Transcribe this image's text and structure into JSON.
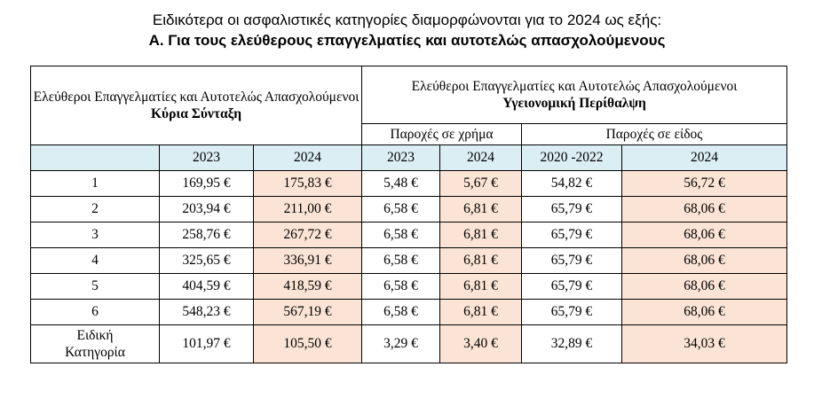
{
  "heading": {
    "line1": "Ειδικότερα οι ασφαλιστικές κατηγορίες διαμορφώνονται για το 2024 ως εξής:",
    "line2": "Α. Για τους ελεύθερους επαγγελματίες και αυτοτελώς απασχολούμενους"
  },
  "table": {
    "left_group": {
      "title": "Ελεύθεροι Επαγγελματίες και Αυτοτελώς Απασχολούμενοι",
      "subtitle": "Κύρια Σύνταξη"
    },
    "right_group": {
      "title": "Ελεύθεροι Επαγγελματίες και Αυτοτελώς Απασχολούμενοι",
      "subtitle": "Υγειονομική Περίθαλψη"
    },
    "sub_groups": {
      "cash": "Παροχές σε χρήμα",
      "kind": "Παροχές σε είδος"
    },
    "years": {
      "main_old": "2023",
      "main_new": "2024",
      "cash_old": "2023",
      "cash_new": "2024",
      "kind_old": "2020 -2022",
      "kind_new": "2024"
    },
    "rows": [
      {
        "label": "1",
        "main_old": "169,95 €",
        "main_new": "175,83 €",
        "cash_old": "5,48 €",
        "cash_new": "5,67 €",
        "kind_old": "54,82 €",
        "kind_new": "56,72 €"
      },
      {
        "label": "2",
        "main_old": "203,94 €",
        "main_new": "211,00 €",
        "cash_old": "6,58 €",
        "cash_new": "6,81 €",
        "kind_old": "65,79 €",
        "kind_new": "68,06 €"
      },
      {
        "label": "3",
        "main_old": "258,76 €",
        "main_new": "267,72 €",
        "cash_old": "6,58 €",
        "cash_new": "6,81 €",
        "kind_old": "65,79 €",
        "kind_new": "68,06 €"
      },
      {
        "label": "4",
        "main_old": "325,65 €",
        "main_new": "336,91 €",
        "cash_old": "6,58 €",
        "cash_new": "6,81 €",
        "kind_old": "65,79 €",
        "kind_new": "68,06 €"
      },
      {
        "label": "5",
        "main_old": "404,59 €",
        "main_new": "418,59 €",
        "cash_old": "6,58 €",
        "cash_new": "6,81 €",
        "kind_old": "65,79 €",
        "kind_new": "68,06 €"
      },
      {
        "label": "6",
        "main_old": "548,23 €",
        "main_new": "567,19 €",
        "cash_old": "6,58 €",
        "cash_new": "6,81 €",
        "kind_old": "65,79 €",
        "kind_new": "68,06 €"
      }
    ],
    "special_row": {
      "label_line1": "Ειδική",
      "label_line2": "Κατηγορία",
      "main_old": "101,97 €",
      "main_new": "105,50 €",
      "cash_old": "3,29 €",
      "cash_new": "3,40 €",
      "kind_old": "32,89 €",
      "kind_new": "34,03 €"
    }
  },
  "colors": {
    "header_blue": "#dbeef4",
    "highlight_peach": "#fbe4d5"
  }
}
